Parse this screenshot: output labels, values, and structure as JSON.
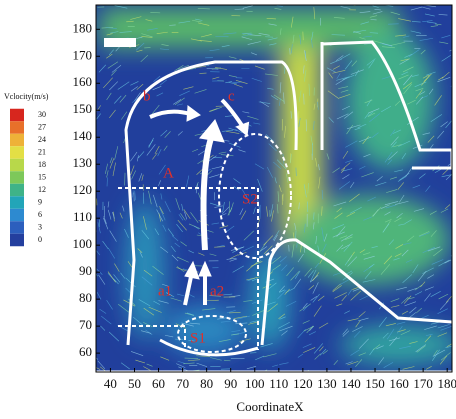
{
  "chart_data": {
    "type": "vector-field",
    "x_label": "CoordinateX",
    "xlim": [
      34,
      182
    ],
    "xticks": [
      40,
      50,
      60,
      70,
      80,
      90,
      100,
      110,
      120,
      130,
      140,
      150,
      160,
      170,
      180
    ],
    "ylim": [
      53,
      189
    ],
    "yticks": [
      60,
      70,
      80,
      90,
      100,
      110,
      120,
      130,
      140,
      150,
      160,
      170,
      180
    ],
    "colorbar": {
      "title": "Vclocity(m/s)",
      "ticks": [
        30,
        27,
        24,
        21,
        18,
        15,
        12,
        9,
        6,
        3,
        0
      ],
      "colors": [
        "#d7261e",
        "#e8702a",
        "#eeb238",
        "#e3df45",
        "#b8d84a",
        "#7dc85a",
        "#3fb388",
        "#22a5b8",
        "#2d8ad0",
        "#2c5fbd",
        "#243f9e"
      ]
    },
    "annotations": [
      "b",
      "c",
      "A",
      "S2",
      "a1",
      "a2",
      "S1"
    ]
  }
}
